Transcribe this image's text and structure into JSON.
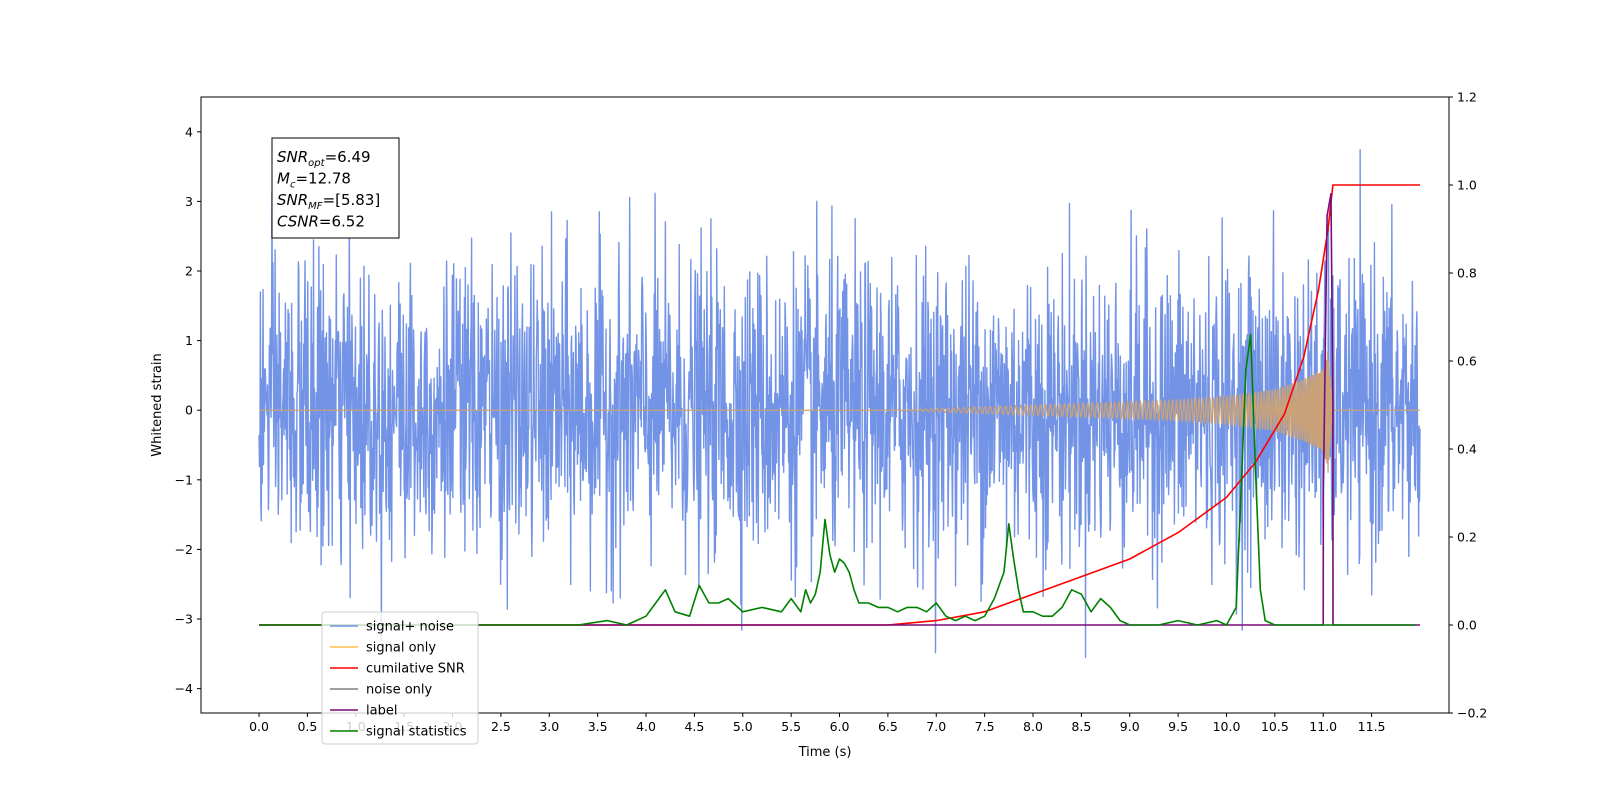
{
  "chart_data": {
    "type": "line",
    "title": "",
    "xlabel": "Time (s)",
    "ylabel": "Whitened strain",
    "y2label": "",
    "xlim": [
      -0.6,
      12.3
    ],
    "ylim": [
      -4.35,
      4.5
    ],
    "y2lim": [
      -0.2,
      1.2
    ],
    "x_ticks": [
      0.0,
      0.5,
      1.0,
      1.5,
      2.0,
      2.5,
      3.0,
      3.5,
      4.0,
      4.5,
      5.0,
      5.5,
      6.0,
      6.5,
      7.0,
      7.5,
      8.0,
      8.5,
      9.0,
      9.5,
      10.0,
      10.5,
      11.0,
      11.5
    ],
    "x_tick_labels": [
      "0.0",
      "0.5",
      "1.0",
      "1.5",
      "2.0",
      "2.5",
      "3.0",
      "3.5",
      "4.0",
      "4.5",
      "5.0",
      "5.5",
      "6.0",
      "6.5",
      "7.0",
      "7.5",
      "8.0",
      "8.5",
      "9.0",
      "9.5",
      "10.0",
      "10.5",
      "11.0",
      "11.5"
    ],
    "y_ticks": [
      4,
      3,
      2,
      1,
      0,
      -1,
      -2,
      -3,
      -4
    ],
    "y_tick_labels": [
      "4",
      "3",
      "2",
      "1",
      "0",
      "−1",
      "−2",
      "−3",
      "−4"
    ],
    "y2_ticks": [
      1.2,
      1.0,
      0.8,
      0.6,
      0.4,
      0.2,
      0.0,
      -0.2
    ],
    "y2_tick_labels": [
      "1.2",
      "1.0",
      "0.8",
      "0.6",
      "0.4",
      "0.2",
      "0.0",
      "−0.2"
    ],
    "grid": false,
    "legend_position": "bottom-left",
    "info_box": {
      "position": "top-left",
      "lines": [
        {
          "base": "SNR",
          "sub": "opt",
          "value": "=6.49"
        },
        {
          "base": "M",
          "sub": "c",
          "value": "=12.78"
        },
        {
          "base": "SNR",
          "sub": "MF",
          "value": "=[5.83]"
        },
        {
          "base": "CSNR",
          "sub": "",
          "value": "=6.52"
        }
      ]
    },
    "series": [
      {
        "name": "signal+ noise",
        "axis": "left",
        "color": "#7293e6",
        "kind": "noise",
        "x_range": [
          0.0,
          12.0
        ],
        "std": 1.05,
        "approx_range": [
          -3.9,
          4.1
        ]
      },
      {
        "name": "signal only",
        "axis": "left",
        "color": "#c9a27a",
        "legend_color": "#ffc04d",
        "kind": "chirp",
        "x_range": [
          0.0,
          12.0
        ],
        "envelope": [
          [
            0.0,
            0.0
          ],
          [
            6.5,
            0.0
          ],
          [
            7.5,
            0.05
          ],
          [
            8.5,
            0.1
          ],
          [
            9.5,
            0.15
          ],
          [
            10.0,
            0.2
          ],
          [
            10.5,
            0.3
          ],
          [
            10.8,
            0.45
          ],
          [
            11.0,
            0.6
          ],
          [
            11.05,
            0.9
          ],
          [
            11.1,
            0.0
          ],
          [
            12.0,
            0.0
          ]
        ]
      },
      {
        "name": "cumilative SNR",
        "axis": "right",
        "color": "#ff0000",
        "x": [
          0.0,
          6.5,
          7.0,
          7.5,
          8.0,
          8.5,
          9.0,
          9.5,
          10.0,
          10.3,
          10.6,
          10.8,
          10.95,
          11.05,
          11.1,
          11.2,
          12.0
        ],
        "values": [
          0.0,
          0.0,
          0.01,
          0.03,
          0.07,
          0.11,
          0.15,
          0.21,
          0.29,
          0.37,
          0.48,
          0.61,
          0.76,
          0.9,
          1.0,
          1.0,
          1.0
        ]
      },
      {
        "name": "noise only",
        "axis": "right",
        "color": "#808080",
        "x": [],
        "values": []
      },
      {
        "name": "label",
        "axis": "right",
        "color": "#7a0a7a",
        "x": [
          0.0,
          11.0,
          11.001,
          11.04,
          11.08,
          11.1,
          11.101,
          12.0
        ],
        "values": [
          0.0,
          0.0,
          0.3,
          0.93,
          0.98,
          0.5,
          0.0,
          0.0
        ]
      },
      {
        "name": "signal statistics",
        "axis": "right",
        "color": "#008000",
        "x": [
          0.0,
          3.0,
          3.3,
          3.6,
          3.8,
          4.0,
          4.1,
          4.2,
          4.3,
          4.45,
          4.55,
          4.65,
          4.75,
          4.85,
          4.9,
          5.0,
          5.2,
          5.4,
          5.5,
          5.6,
          5.65,
          5.7,
          5.75,
          5.8,
          5.85,
          5.9,
          5.95,
          6.0,
          6.05,
          6.1,
          6.15,
          6.2,
          6.3,
          6.4,
          6.5,
          6.6,
          6.7,
          6.8,
          6.9,
          7.0,
          7.1,
          7.2,
          7.3,
          7.4,
          7.5,
          7.6,
          7.7,
          7.75,
          7.8,
          7.85,
          7.9,
          8.0,
          8.1,
          8.2,
          8.3,
          8.4,
          8.5,
          8.55,
          8.6,
          8.7,
          8.8,
          8.9,
          9.0,
          9.1,
          9.3,
          9.5,
          9.7,
          9.9,
          10.0,
          10.1,
          10.15,
          10.2,
          10.25,
          10.3,
          10.35,
          10.4,
          10.5,
          10.7,
          10.9,
          11.0,
          11.5,
          11.95
        ],
        "values": [
          0.0,
          0.0,
          0.0,
          0.01,
          0.0,
          0.02,
          0.05,
          0.08,
          0.03,
          0.02,
          0.09,
          0.05,
          0.05,
          0.06,
          0.05,
          0.03,
          0.04,
          0.03,
          0.06,
          0.03,
          0.08,
          0.05,
          0.07,
          0.12,
          0.24,
          0.16,
          0.12,
          0.15,
          0.14,
          0.12,
          0.08,
          0.05,
          0.05,
          0.04,
          0.04,
          0.03,
          0.04,
          0.04,
          0.03,
          0.05,
          0.02,
          0.01,
          0.02,
          0.01,
          0.02,
          0.06,
          0.12,
          0.23,
          0.15,
          0.08,
          0.03,
          0.03,
          0.02,
          0.02,
          0.04,
          0.08,
          0.07,
          0.05,
          0.03,
          0.06,
          0.04,
          0.01,
          0.0,
          0.0,
          0.0,
          0.01,
          0.0,
          0.01,
          0.0,
          0.04,
          0.3,
          0.58,
          0.66,
          0.35,
          0.08,
          0.01,
          0.0,
          0.0,
          0.0,
          0.0,
          0.0,
          0.0
        ]
      }
    ]
  }
}
